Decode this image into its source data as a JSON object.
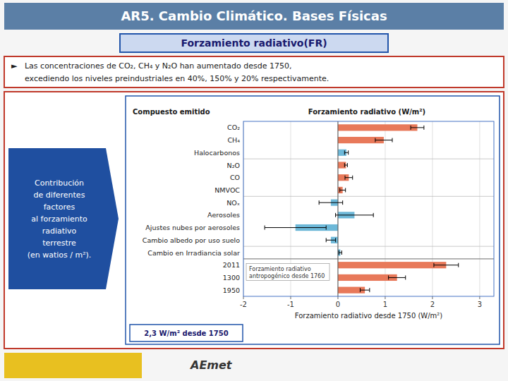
{
  "chart_data": {
    "type": "bar",
    "orientation": "horizontal",
    "title": "AR5. Cambio Climático. Bases Físicas",
    "subtitle": "Forzamiento radiativo(FR)",
    "xlabel": "Forzamiento radiativo desde 1750 (W/m²)",
    "annotations": [
      "Contribución\nde diferentes\nfactores\nal forzamiento\nradiativo\nterrestre\n(en watios / m²).",
      "2,3 W/m² desde 1750",
      "►",
      "  Las concentraciones de CO₂, CH₄ y N₂O han aumentado desde 1750,",
      "  excediendo los niveles preindustriales en 40%, 150% y 20% respectivamente.",
      "AEmet",
      "Compuesto emitido",
      "Forzamiento radiativo (W/m²)",
      "Forzamiento radiativo\nantropogénico desde 1760"
    ],
    "categories": [
      "CO₂",
      "CH₄",
      "Halocarbonos",
      "N₂O",
      "CO",
      "NMVOC",
      "NOₓ",
      "Aerosoles",
      "Ajustes nubes por aerosoles",
      "Cambio albedo por uso suelo",
      "Cambio en Irradiancia solar",
      "2011",
      "1300",
      "1950"
    ],
    "values": [
      1.68,
      0.97,
      0.18,
      0.17,
      0.23,
      0.1,
      -0.15,
      0.35,
      -0.9,
      -0.15,
      0.05,
      2.29,
      1.25,
      0.57
    ],
    "err_low": [
      0.14,
      0.18,
      0.04,
      0.03,
      0.08,
      0.06,
      0.25,
      0.4,
      0.65,
      0.1,
      0.03,
      0.26,
      0.18,
      0.1
    ],
    "err_high": [
      0.14,
      0.18,
      0.04,
      0.03,
      0.08,
      0.06,
      0.25,
      0.4,
      0.65,
      0.1,
      0.03,
      0.26,
      0.18,
      0.1
    ],
    "colors": [
      "#e8795a",
      "#e8795a",
      "#6db8d8",
      "#e8795a",
      "#e8795a",
      "#e8795a",
      "#6db8d8",
      "#6db8d8",
      "#6db8d8",
      "#6db8d8",
      "#6db8d8",
      "#e8795a",
      "#e8795a",
      "#e8795a"
    ],
    "xlim": [
      -2,
      3.3
    ],
    "xticks": [
      -2,
      -1,
      0,
      1,
      2,
      3
    ],
    "grid": true
  }
}
